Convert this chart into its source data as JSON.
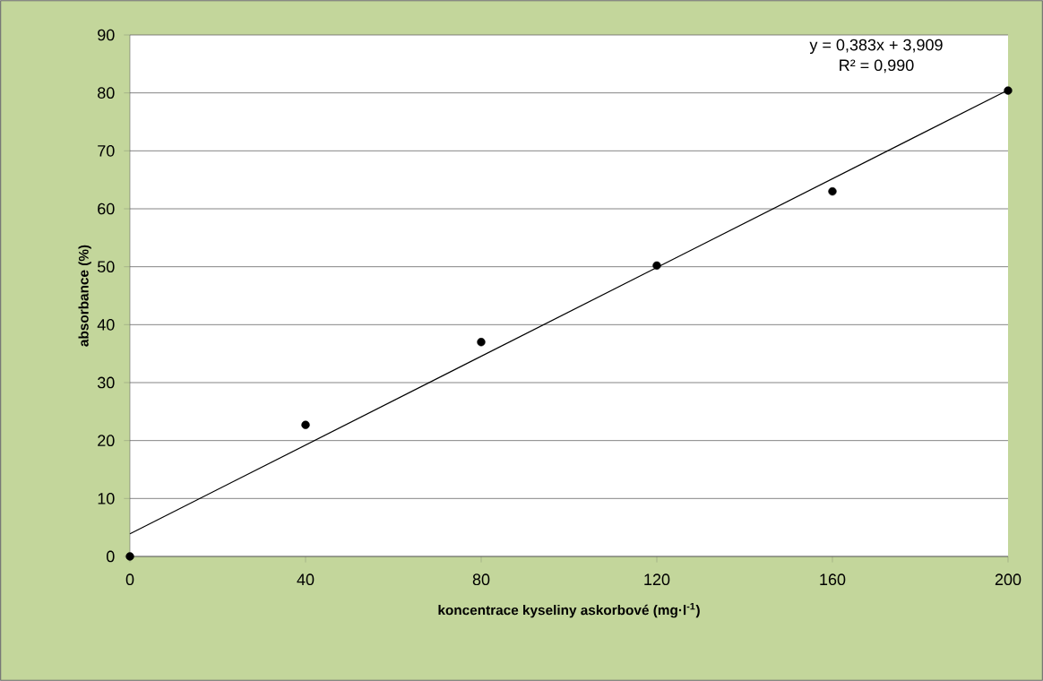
{
  "chart_data": {
    "type": "scatter",
    "xlabel": "koncentrace kyseliny askorbové (mg·l$^{-1}$)",
    "ylabel": "absorbance (%)",
    "series": [
      {
        "color": "#000000",
        "marker": "circle",
        "x": [
          0,
          40,
          80,
          120,
          160,
          200
        ],
        "values": [
          0,
          22.7,
          37.0,
          50.2,
          63.0,
          80.4
        ]
      },
      {
        "type": "line",
        "color": "#000000",
        "marker": "none",
        "x": [
          0,
          200
        ],
        "values": [
          3.9,
          80.5
        ]
      }
    ],
    "annotations": [
      "y = 0,383x + 3,909",
      "R² = 0,990"
    ],
    "xlim": [
      0,
      200
    ],
    "ylim": [
      0,
      90
    ],
    "xticks": [
      0,
      40,
      80,
      120,
      160,
      200
    ],
    "yticks": [
      0,
      10,
      20,
      30,
      40,
      50,
      60,
      70,
      80,
      90
    ],
    "grid": "y"
  }
}
